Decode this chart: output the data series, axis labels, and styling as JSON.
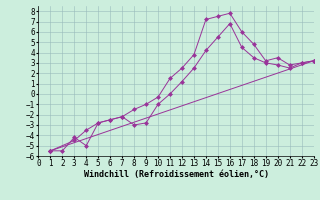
{
  "title": "",
  "xlabel": "Windchill (Refroidissement éolien,°C)",
  "background_color": "#cceedd",
  "line_color": "#993399",
  "xlim": [
    0,
    23
  ],
  "ylim": [
    -6,
    8.5
  ],
  "xticks": [
    0,
    1,
    2,
    3,
    4,
    5,
    6,
    7,
    8,
    9,
    10,
    11,
    12,
    13,
    14,
    15,
    16,
    17,
    18,
    19,
    20,
    21,
    22,
    23
  ],
  "yticks": [
    -6,
    -5,
    -4,
    -3,
    -2,
    -1,
    0,
    1,
    2,
    3,
    4,
    5,
    6,
    7,
    8
  ],
  "line1_x": [
    1,
    2,
    3,
    4,
    5,
    6,
    7,
    8,
    9,
    10,
    11,
    12,
    13,
    14,
    15,
    16,
    17,
    18,
    19,
    20,
    21,
    22,
    23
  ],
  "line1_y": [
    -5.5,
    -5.5,
    -4.2,
    -5.0,
    -2.8,
    -2.5,
    -2.2,
    -1.5,
    -1.0,
    -0.3,
    1.5,
    2.5,
    3.8,
    7.2,
    7.5,
    7.8,
    6.0,
    4.8,
    3.2,
    3.5,
    2.8,
    3.0,
    3.2
  ],
  "line2_x": [
    1,
    3,
    4,
    5,
    6,
    7,
    8,
    9,
    10,
    11,
    12,
    13,
    14,
    15,
    16,
    17,
    18,
    19,
    20,
    21,
    22,
    23
  ],
  "line2_y": [
    -5.5,
    -4.5,
    -3.5,
    -2.8,
    -2.5,
    -2.2,
    -3.0,
    -2.8,
    -1.0,
    0.0,
    1.2,
    2.5,
    4.2,
    5.5,
    6.8,
    4.5,
    3.5,
    3.0,
    2.8,
    2.5,
    3.0,
    3.2
  ],
  "line3_x": [
    1,
    23
  ],
  "line3_y": [
    -5.5,
    3.2
  ],
  "grid_color": "#99bbbb",
  "marker": "D",
  "markersize": 2.5,
  "tick_fontsize": 5.5,
  "xlabel_fontsize": 6.0
}
